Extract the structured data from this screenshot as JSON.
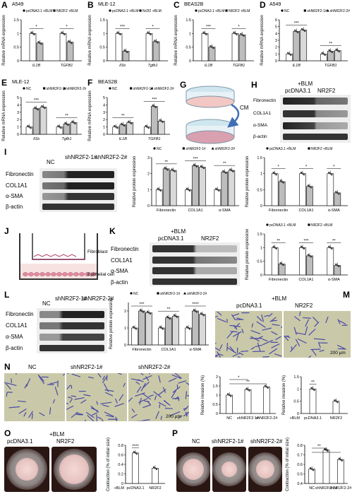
{
  "panels": {
    "A": "A",
    "B": "B",
    "C": "C",
    "D": "D",
    "E": "E",
    "F": "F",
    "G": "G",
    "H": "H",
    "I": "I",
    "J": "J",
    "K": "K",
    "L": "L",
    "M": "M",
    "N": "N",
    "O": "O",
    "P": "P"
  },
  "cell_titles": {
    "A": "A549",
    "B": "MLE-12",
    "C": "BEAS2B",
    "D": "A549",
    "E": "MLE-12",
    "F": "BEAS2B"
  },
  "common": {
    "ylabel_mrna": "Relative mRNA expression",
    "ylabel_protein": "Relative protein expression",
    "ylabel_invasion": "Relative invasion (%)",
    "ylabel_contraction": "Contraction (% of initial size)",
    "blm": "+BLM",
    "scale_bar": "200 μm"
  },
  "labels": {
    "fibronectin": "Fibronectin",
    "col1a1": "COL1A1",
    "asma": "α-SMA",
    "bactin": "β-actin",
    "nc": "NC",
    "sh1": "shNR2F2-1#",
    "sh2": "shNR2F2-2#",
    "pc": "pcDNA3.1",
    "nr2f2": "NR2F2",
    "cm": "CM",
    "fibroblast": "Fibroblast",
    "epithelial": "Epithelial cell"
  },
  "chart_data": [
    {
      "panel": "A",
      "type": "bar",
      "categories": [
        "IL1B",
        "TGFB1"
      ],
      "series": [
        {
          "name": "pcDNA3.1 +BLM",
          "values": [
            1.0,
            1.0
          ]
        },
        {
          "name": "NR2F2 +BLM",
          "values": [
            0.65,
            0.68
          ]
        }
      ],
      "ylim": [
        0,
        1.5
      ],
      "significance": [
        "*",
        "*"
      ],
      "ylabel": "Relative mRNA expression"
    },
    {
      "panel": "B",
      "type": "bar",
      "categories": [
        "Il1b",
        "Tgfb1"
      ],
      "series": [
        {
          "name": "pcDNA3.1 +BLM",
          "values": [
            1.0,
            1.0
          ]
        },
        {
          "name": "Nr2f2 +BLM",
          "values": [
            0.35,
            0.7
          ]
        }
      ],
      "ylim": [
        0,
        1.5
      ],
      "significance": [
        "***",
        "*"
      ],
      "ylabel": "Relative mRNA expression"
    },
    {
      "panel": "C",
      "type": "bar",
      "categories": [
        "IL1B",
        "TGFB1"
      ],
      "series": [
        {
          "name": "pcDNA3.1 +BLM",
          "values": [
            1.0,
            1.0
          ]
        },
        {
          "name": "NR2F2 +BLM",
          "values": [
            0.5,
            0.95
          ]
        }
      ],
      "ylim": [
        0,
        1.5
      ],
      "significance": [
        "***",
        "*"
      ],
      "ylabel": "Relative mRNA expression"
    },
    {
      "panel": "D",
      "type": "bar",
      "categories": [
        "IL1B",
        "TGFB1"
      ],
      "series": [
        {
          "name": "NC",
          "values": [
            1.0,
            1.0
          ]
        },
        {
          "name": "shNR2F2-1#",
          "values": [
            4.3,
            1.4
          ]
        },
        {
          "name": "shNR2F2-2#",
          "values": [
            4.5,
            1.5
          ]
        }
      ],
      "ylim": [
        0,
        6
      ],
      "significance": [
        "***",
        "**"
      ],
      "ylabel": "Relative mRNA expression"
    },
    {
      "panel": "E",
      "type": "bar",
      "categories": [
        "Il1b",
        "Tgfb1"
      ],
      "series": [
        {
          "name": "NC",
          "values": [
            1.0,
            1.0
          ]
        },
        {
          "name": "shNR2F2-1#",
          "values": [
            3.5,
            1.4
          ]
        },
        {
          "name": "shNR2F2-2#",
          "values": [
            3.7,
            1.6
          ]
        }
      ],
      "ylim": [
        0,
        5
      ],
      "significance": [
        "***",
        "**"
      ],
      "ylabel": "Relative mRNA expression"
    },
    {
      "panel": "F",
      "type": "bar",
      "categories": [
        "IL1B",
        "TGFB1"
      ],
      "series": [
        {
          "name": "NC",
          "values": [
            1.0,
            1.0
          ]
        },
        {
          "name": "shNR2F2-1#",
          "values": [
            1.3,
            3.8
          ]
        },
        {
          "name": "shNR2F2-2#",
          "values": [
            1.6,
            1.8
          ]
        }
      ],
      "ylim": [
        0,
        5
      ],
      "significance": [
        "**",
        "***"
      ],
      "ylabel": "Relative mRNA expression"
    },
    {
      "panel": "I",
      "type": "bar",
      "categories": [
        "Fibronectin",
        "COL1A1",
        "α-SMA"
      ],
      "series": [
        {
          "name": "NC",
          "values": [
            1.0,
            1.0,
            1.0
          ]
        },
        {
          "name": "shNR2F2-1#",
          "values": [
            2.3,
            2.5,
            2.1
          ]
        },
        {
          "name": "shNR2F2-2#",
          "values": [
            2.2,
            2.4,
            2.2
          ]
        }
      ],
      "ylim": [
        0,
        3
      ],
      "significance": [
        "**",
        "***",
        "**"
      ],
      "ylabel": "Relative protein expression"
    },
    {
      "panel": "H",
      "type": "bar",
      "categories": [
        "Fibronectin",
        "COL1A1",
        "α-SMA"
      ],
      "series": [
        {
          "name": "pcDNA3.1 +BLM",
          "values": [
            1.0,
            1.0,
            1.0
          ]
        },
        {
          "name": "NR2F2 +BLM",
          "values": [
            0.75,
            0.6,
            0.4
          ]
        }
      ],
      "ylim": [
        0,
        1.5
      ],
      "significance": [
        "*",
        "*",
        "*"
      ],
      "ylabel": "Relative protein expression"
    },
    {
      "panel": "K",
      "type": "bar",
      "categories": [
        "Fibronectin",
        "COL1A1",
        "α-SMA"
      ],
      "series": [
        {
          "name": "pcDNA3.1 +BLM",
          "values": [
            1.0,
            1.0,
            1.0
          ]
        },
        {
          "name": "NR2F2 +BLM",
          "values": [
            0.4,
            0.7,
            0.35
          ]
        }
      ],
      "ylim": [
        0,
        1.5
      ],
      "significance": [
        "**",
        "***",
        "**"
      ],
      "ylabel": "Relative protein expression"
    },
    {
      "panel": "L",
      "type": "bar",
      "categories": [
        "Fibronectin",
        "COL1A1",
        "α-SMA"
      ],
      "series": [
        {
          "name": "NC",
          "values": [
            1.0,
            1.0,
            1.0
          ]
        },
        {
          "name": "shNR2F2-1#",
          "values": [
            2.0,
            1.6,
            2.0
          ]
        },
        {
          "name": "shNR2F2-2#",
          "values": [
            1.9,
            1.7,
            1.8
          ]
        }
      ],
      "ylim": [
        0,
        2.5
      ],
      "significance": [
        "***",
        "**",
        "****"
      ],
      "ylabel": "Relative protein expression"
    },
    {
      "panel": "N1",
      "type": "bar",
      "categories": [
        "NC",
        "shNR2F2-1#",
        "shNR2F2-2#"
      ],
      "values": [
        1.0,
        1.3,
        1.45
      ],
      "ylim": [
        0,
        2.0
      ],
      "significance": [
        "*",
        "**"
      ],
      "ylabel": "Relative invasion (%)"
    },
    {
      "panel": "N2",
      "type": "bar",
      "categories": [
        "pcDNA3.1",
        "NR2F2"
      ],
      "values": [
        1.0,
        0.5
      ],
      "ylim": [
        0,
        1.5
      ],
      "significance": [
        "**"
      ],
      "ylabel": "Relative invasion (%)",
      "xprefix": "+BLM"
    },
    {
      "panel": "O",
      "type": "bar",
      "categories": [
        "pcDNA3.1",
        "NR2F2"
      ],
      "values": [
        0.64,
        0.32
      ],
      "ylim": [
        0,
        0.8
      ],
      "significance": [
        "****"
      ],
      "ylabel": "Contraction (% of initial size)",
      "xprefix": "+BLM"
    },
    {
      "panel": "P",
      "type": "bar",
      "categories": [
        "NC",
        "shNR2F2-1#",
        "shNR2F2-2#"
      ],
      "values": [
        0.55,
        0.75,
        0.65
      ],
      "ylim": [
        0.4,
        0.8
      ],
      "significance": [
        "**",
        "**"
      ],
      "ylabel": "Contraction (% of initial size)"
    }
  ]
}
